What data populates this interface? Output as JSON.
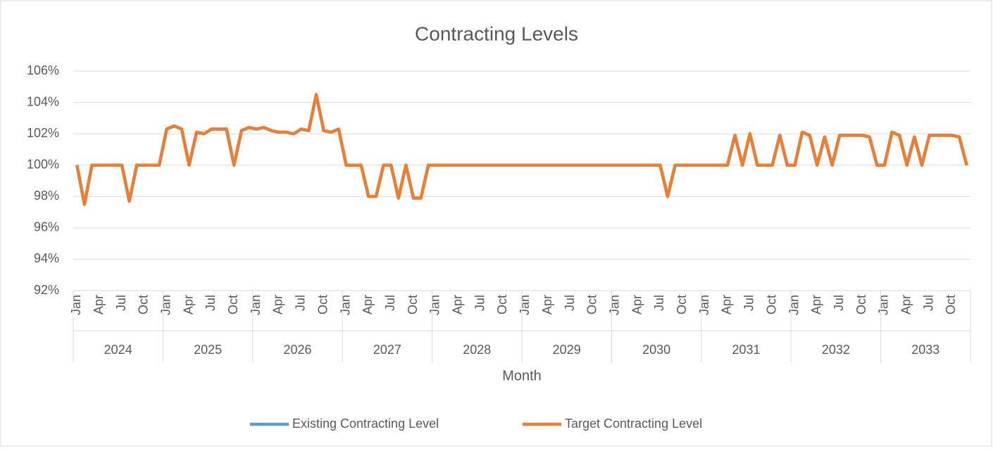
{
  "chart_data": {
    "type": "line",
    "title": "Contracting Levels",
    "x_label": "Month",
    "categories": [
      "Jan",
      null,
      null,
      "Apr",
      null,
      null,
      "Jul",
      null,
      null,
      "Oct",
      null,
      null,
      "Jan",
      null,
      null,
      "Apr",
      null,
      null,
      "Jul",
      null,
      null,
      "Oct",
      null,
      null,
      "Jan",
      null,
      null,
      "Apr",
      null,
      null,
      "Jul",
      null,
      null,
      "Oct",
      null,
      null,
      "Jan",
      null,
      null,
      "Apr",
      null,
      null,
      "Jul",
      null,
      null,
      "Oct",
      null,
      null,
      "Jan",
      null,
      null,
      "Apr",
      null,
      null,
      "Jul",
      null,
      null,
      "Oct",
      null,
      null,
      "Jan",
      null,
      null,
      "Apr",
      null,
      null,
      "Jul",
      null,
      null,
      "Oct",
      null,
      null,
      "Jan",
      null,
      null,
      "Apr",
      null,
      null,
      "Jul",
      null,
      null,
      "Oct",
      null,
      null,
      "Jan",
      null,
      null,
      "Apr",
      null,
      null,
      "Jul",
      null,
      null,
      "Oct",
      null,
      null,
      "Jan",
      null,
      null,
      "Apr",
      null,
      null,
      "Jul",
      null,
      null,
      "Oct",
      null,
      null,
      "Jan",
      null,
      null,
      "Apr",
      null,
      null,
      "Jul",
      null,
      null,
      "Oct",
      null,
      null
    ],
    "category_groups": [
      "2024",
      "2025",
      "2026",
      "2027",
      "2028",
      "2029",
      "2030",
      "2031",
      "2032",
      "2033"
    ],
    "series": [
      {
        "name": "Existing Contracting Level",
        "color": "#5b9bd5",
        "values": [
          100,
          97.5,
          100,
          100,
          100,
          100,
          100,
          97.7,
          100,
          100,
          100,
          100,
          102.3,
          102.5,
          102.3,
          100,
          102.1,
          102,
          102.3,
          102.3,
          102.3,
          100,
          102.2,
          102.4,
          102.3,
          102.4,
          102.2,
          102.1,
          102.1,
          102,
          102.3,
          102.2,
          104.5,
          102.2,
          102.1,
          102.3,
          100,
          100,
          100,
          98,
          98,
          100,
          100,
          97.9,
          100,
          97.9,
          97.9,
          100,
          100,
          100,
          100,
          100,
          100,
          100,
          100,
          100,
          100,
          100,
          100,
          100,
          100,
          100,
          100,
          100,
          100,
          100,
          100,
          100,
          100,
          100,
          100,
          100,
          100,
          100,
          100,
          100,
          100,
          100,
          100,
          98,
          100,
          100,
          100,
          100,
          100,
          100,
          100,
          100,
          101.9,
          100,
          102,
          100,
          100,
          100,
          101.9,
          100,
          100,
          102.1,
          101.9,
          100,
          101.8,
          100,
          101.9,
          101.9,
          101.9,
          101.9,
          101.8,
          100,
          100,
          102.1,
          101.9,
          100,
          101.8,
          100,
          101.9,
          101.9,
          101.9,
          101.9,
          101.8,
          100
        ]
      },
      {
        "name": "Target Contracting Level",
        "color": "#ed7d31",
        "values": [
          100,
          97.5,
          100,
          100,
          100,
          100,
          100,
          97.7,
          100,
          100,
          100,
          100,
          102.3,
          102.5,
          102.3,
          100,
          102.1,
          102,
          102.3,
          102.3,
          102.3,
          100,
          102.2,
          102.4,
          102.3,
          102.4,
          102.2,
          102.1,
          102.1,
          102,
          102.3,
          102.2,
          104.5,
          102.2,
          102.1,
          102.3,
          100,
          100,
          100,
          98,
          98,
          100,
          100,
          97.9,
          100,
          97.9,
          97.9,
          100,
          100,
          100,
          100,
          100,
          100,
          100,
          100,
          100,
          100,
          100,
          100,
          100,
          100,
          100,
          100,
          100,
          100,
          100,
          100,
          100,
          100,
          100,
          100,
          100,
          100,
          100,
          100,
          100,
          100,
          100,
          100,
          98,
          100,
          100,
          100,
          100,
          100,
          100,
          100,
          100,
          101.9,
          100,
          102,
          100,
          100,
          100,
          101.9,
          100,
          100,
          102.1,
          101.9,
          100,
          101.8,
          100,
          101.9,
          101.9,
          101.9,
          101.9,
          101.8,
          100,
          100,
          102.1,
          101.9,
          100,
          101.8,
          100,
          101.9,
          101.9,
          101.9,
          101.9,
          101.8,
          100
        ]
      }
    ],
    "ylim": [
      92,
      106
    ],
    "yticks": [
      {
        "value": 92,
        "label": "92%"
      },
      {
        "value": 94,
        "label": "94%"
      },
      {
        "value": 96,
        "label": "96%"
      },
      {
        "value": 98,
        "label": "98%"
      },
      {
        "value": 100,
        "label": "100%"
      },
      {
        "value": 102,
        "label": "102%"
      },
      {
        "value": 104,
        "label": "104%"
      },
      {
        "value": 106,
        "label": "106%"
      }
    ],
    "grid": true,
    "legend": "bottom"
  }
}
